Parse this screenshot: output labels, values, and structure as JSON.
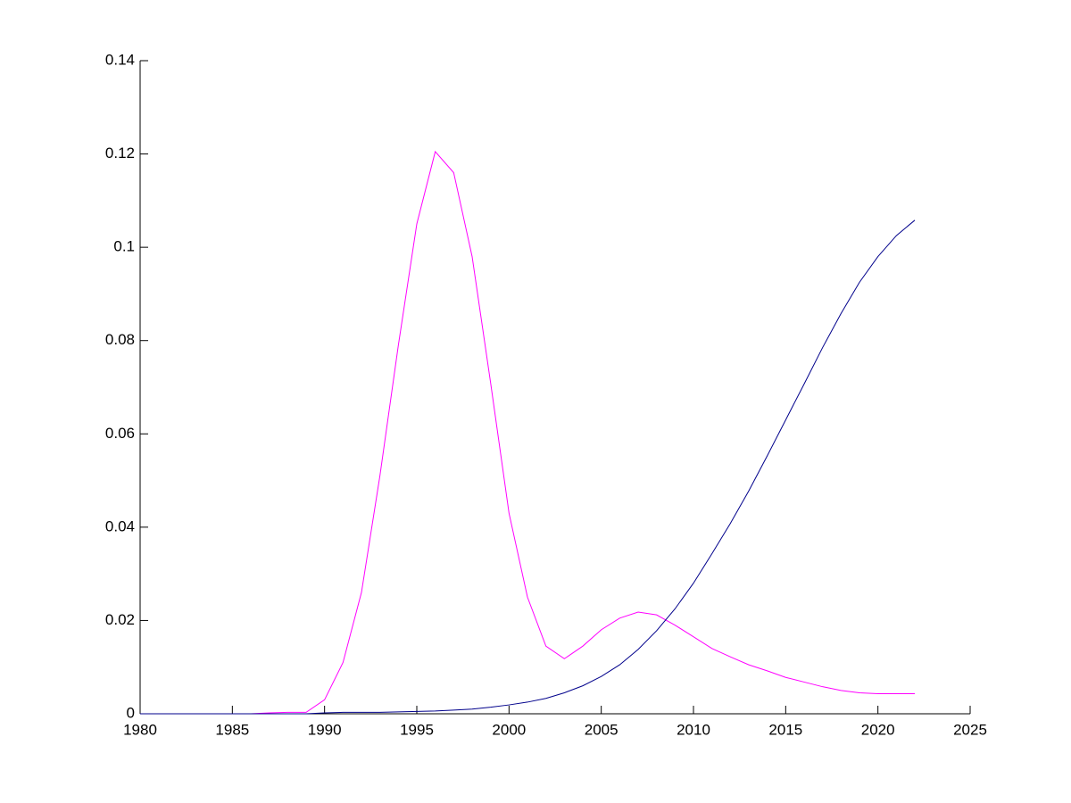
{
  "chart_data": {
    "type": "line",
    "x": [
      1980,
      1981,
      1982,
      1983,
      1984,
      1985,
      1986,
      1987,
      1988,
      1989,
      1990,
      1991,
      1992,
      1993,
      1994,
      1995,
      1996,
      1997,
      1998,
      1999,
      2000,
      2001,
      2002,
      2003,
      2004,
      2005,
      2006,
      2007,
      2008,
      2009,
      2010,
      2011,
      2012,
      2013,
      2014,
      2015,
      2016,
      2017,
      2018,
      2019,
      2020,
      2021,
      2022
    ],
    "series": [
      {
        "color": "#ff00ff",
        "values": [
          0,
          0,
          0,
          0,
          0,
          0,
          0,
          0.0002,
          0.0003,
          0.0003,
          0.003,
          0.011,
          0.026,
          0.051,
          0.079,
          0.105,
          0.1205,
          0.116,
          0.098,
          0.071,
          0.043,
          0.025,
          0.0145,
          0.0118,
          0.0145,
          0.018,
          0.0205,
          0.0218,
          0.0212,
          0.019,
          0.0165,
          0.014,
          0.0122,
          0.0105,
          0.0092,
          0.0078,
          0.0068,
          0.0058,
          0.005,
          0.0045,
          0.0043,
          0.0043,
          0.0043
        ]
      },
      {
        "color": "#00008b",
        "values": [
          0,
          0,
          0,
          0,
          0,
          0,
          0,
          0,
          0,
          0,
          0.0002,
          0.0003,
          0.0003,
          0.0003,
          0.0004,
          0.0005,
          0.0006,
          0.0008,
          0.001,
          0.0014,
          0.0019,
          0.0025,
          0.0033,
          0.0045,
          0.006,
          0.008,
          0.0105,
          0.0138,
          0.0178,
          0.0225,
          0.028,
          0.0343,
          0.0408,
          0.0478,
          0.0553,
          0.063,
          0.0707,
          0.0785,
          0.0858,
          0.0925,
          0.098,
          0.1025,
          0.1058
        ]
      }
    ],
    "xlim": [
      1980,
      2025
    ],
    "xticks": [
      1980,
      1985,
      1990,
      1995,
      2000,
      2005,
      2010,
      2015,
      2020,
      2025
    ],
    "ylim": [
      0,
      0.14
    ],
    "yticks": [
      0,
      0.02,
      0.04,
      0.06,
      0.08,
      0.1,
      0.12,
      0.14
    ]
  }
}
